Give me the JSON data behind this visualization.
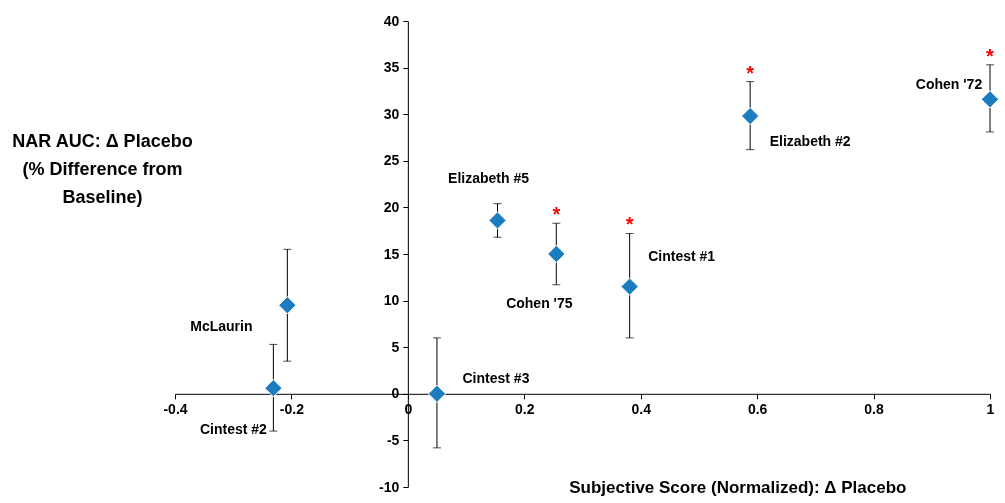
{
  "chart_data": {
    "type": "scatter",
    "xlabel": "Subjective Score (Normalized): Δ Placebo",
    "ylabel": "NAR AUC: Δ Placebo\n(% Difference from\nBaseline)",
    "x": [
      -0.231,
      -0.207,
      0.05,
      0.154,
      0.255,
      0.381,
      0.588,
      1.0
    ],
    "series": [
      {
        "color": "#1b7dc0",
        "values": [
          0.6,
          9.5,
          0,
          18.6,
          15,
          11.5,
          29.8,
          31.6
        ],
        "errors": [
          [
            -4.0,
            5.3
          ],
          [
            3.5,
            15.5
          ],
          [
            -5.8,
            6.0
          ],
          [
            16.8,
            20.4
          ],
          [
            11.7,
            18.3
          ],
          [
            6.0,
            17.2
          ],
          [
            26.2,
            33.5
          ],
          [
            28.1,
            35.3
          ]
        ]
      }
    ],
    "marker": "diamond",
    "xlim": [
      -0.4,
      1.0
    ],
    "xticks": [
      -0.4,
      -0.2,
      0,
      0.2,
      0.4,
      0.6,
      0.8,
      1
    ],
    "ylim": [
      -10,
      40
    ],
    "yticks": [
      -10,
      -5,
      0,
      5,
      10,
      15,
      20,
      25,
      30,
      35,
      40
    ],
    "grid": false,
    "annotations": [
      {
        "text": "Cintest #2",
        "x": -0.231,
        "y": 0.6
      },
      {
        "text": "McLaurin",
        "x": -0.207,
        "y": 9.5
      },
      {
        "text": "Cintest #3",
        "x": 0.05,
        "y": 0
      },
      {
        "text": "Elizabeth #5",
        "x": 0.154,
        "y": 18.6
      },
      {
        "text": "Cohen '75",
        "x": 0.255,
        "y": 15
      },
      {
        "text": "Cintest #1",
        "x": 0.381,
        "y": 11.5
      },
      {
        "text": "Elizabeth #2",
        "x": 0.588,
        "y": 29.8
      },
      {
        "text": "Cohen '72",
        "x": 1.0,
        "y": 31.6
      },
      {
        "text": "*",
        "x": 0.255,
        "y": 18.3
      },
      {
        "text": "*",
        "x": 0.381,
        "y": 17.2
      },
      {
        "text": "*",
        "x": 0.588,
        "y": 33.5
      },
      {
        "text": "*",
        "x": 1.0,
        "y": 35.3
      }
    ]
  }
}
